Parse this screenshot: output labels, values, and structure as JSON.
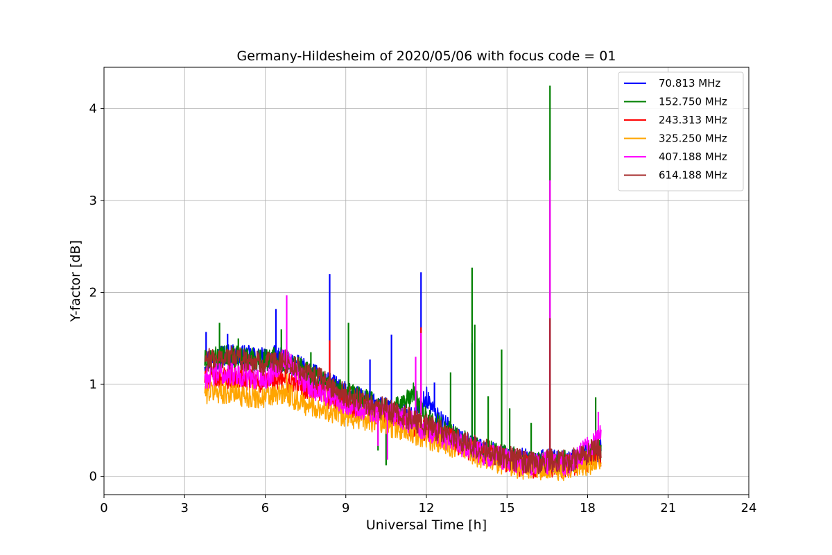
{
  "chart_data": {
    "type": "line",
    "title": "Germany-Hildesheim of 2020/05/06 with focus code = 01",
    "xlabel": "Universal Time [h]",
    "ylabel": "Y-factor [dB]",
    "xlim": [
      0,
      24
    ],
    "ylim": [
      -0.2,
      4.45
    ],
    "xticks": [
      0,
      3,
      6,
      9,
      12,
      15,
      18,
      21,
      24
    ],
    "yticks": [
      0,
      1,
      2,
      3,
      4
    ],
    "grid": true,
    "legend_position": "upper right",
    "series": [
      {
        "name": " 70.813 MHz",
        "color": "#0000ff",
        "x": [
          3.75,
          4.5,
          5.25,
          6.0,
          6.4,
          6.75,
          7.5,
          8.4,
          9.0,
          9.75,
          10.25,
          10.75,
          11.5,
          12.0,
          12.5,
          13.25,
          14.0,
          14.75,
          15.5,
          16.0,
          16.6,
          17.0,
          17.5,
          18.0,
          18.5
        ],
        "values": [
          1.25,
          1.32,
          1.3,
          1.27,
          1.3,
          1.25,
          1.15,
          1.0,
          0.9,
          0.82,
          0.75,
          0.7,
          0.62,
          0.85,
          0.6,
          0.38,
          0.28,
          0.22,
          0.18,
          0.15,
          0.17,
          0.15,
          0.17,
          0.22,
          0.3
        ],
        "spikes": [
          [
            3.8,
            1.57
          ],
          [
            4.6,
            1.55
          ],
          [
            6.4,
            1.82
          ],
          [
            8.4,
            2.2
          ],
          [
            9.9,
            1.27
          ],
          [
            10.7,
            1.54
          ],
          [
            11.8,
            2.22
          ],
          [
            12.3,
            1.02
          ],
          [
            13.7,
            1.45
          ],
          [
            16.6,
            1.6
          ]
        ]
      },
      {
        "name": "152.750 MHz",
        "color": "#008000",
        "x": [
          3.75,
          4.5,
          5.25,
          6.0,
          6.4,
          6.75,
          7.5,
          8.4,
          9.0,
          9.75,
          10.25,
          10.75,
          11.5,
          12.0,
          12.5,
          13.25,
          14.0,
          14.75,
          15.5,
          16.0,
          16.6,
          17.0,
          17.5,
          18.0,
          18.5
        ],
        "values": [
          1.25,
          1.3,
          1.28,
          1.27,
          1.3,
          1.25,
          1.15,
          1.0,
          0.9,
          0.82,
          0.75,
          0.7,
          0.9,
          0.62,
          0.55,
          0.4,
          0.3,
          0.22,
          0.18,
          0.15,
          0.17,
          0.15,
          0.17,
          0.22,
          0.28
        ],
        "spikes": [
          [
            4.3,
            1.67
          ],
          [
            5.0,
            1.5
          ],
          [
            6.6,
            1.6
          ],
          [
            7.7,
            1.35
          ],
          [
            9.1,
            1.67
          ],
          [
            10.2,
            0.28
          ],
          [
            10.5,
            0.12
          ],
          [
            12.9,
            1.13
          ],
          [
            13.7,
            2.27
          ],
          [
            13.8,
            1.65
          ],
          [
            14.3,
            0.87
          ],
          [
            14.8,
            1.38
          ],
          [
            15.1,
            0.74
          ],
          [
            15.9,
            0.58
          ],
          [
            16.6,
            4.25
          ],
          [
            18.3,
            0.86
          ]
        ]
      },
      {
        "name": "243.313 MHz",
        "color": "#ff0000",
        "x": [
          3.75,
          4.5,
          5.25,
          6.0,
          6.75,
          7.5,
          8.4,
          9.0,
          9.75,
          10.5,
          11.5,
          12.0,
          12.5,
          13.25,
          14.0,
          14.75,
          15.5,
          16.0,
          16.6,
          17.0,
          17.5,
          18.0,
          18.5
        ],
        "values": [
          1.05,
          1.08,
          1.05,
          1.02,
          1.05,
          0.95,
          0.85,
          0.78,
          0.72,
          0.65,
          0.55,
          0.5,
          0.45,
          0.35,
          0.25,
          0.18,
          0.12,
          0.1,
          0.12,
          0.1,
          0.12,
          0.17,
          0.22
        ],
        "spikes": [
          [
            8.4,
            1.48
          ],
          [
            11.8,
            1.62
          ],
          [
            16.6,
            1.7
          ]
        ]
      },
      {
        "name": "325.250 MHz",
        "color": "#ffa500",
        "x": [
          3.75,
          4.5,
          5.25,
          6.0,
          6.75,
          7.5,
          8.4,
          9.0,
          9.75,
          10.5,
          11.5,
          12.0,
          12.5,
          13.25,
          14.0,
          14.75,
          15.5,
          16.0,
          16.6,
          17.0,
          17.5,
          18.0,
          18.5
        ],
        "values": [
          0.92,
          0.92,
          0.88,
          0.85,
          0.9,
          0.78,
          0.72,
          0.66,
          0.62,
          0.56,
          0.48,
          0.42,
          0.38,
          0.3,
          0.22,
          0.15,
          0.1,
          0.08,
          0.1,
          0.08,
          0.1,
          0.14,
          0.18
        ],
        "spikes": [
          [
            6.8,
            1.15
          ]
        ]
      },
      {
        "name": "407.188 MHz",
        "color": "#ff00ff",
        "x": [
          3.75,
          4.5,
          5.25,
          6.0,
          6.75,
          7.5,
          8.4,
          9.0,
          9.75,
          10.5,
          11.5,
          12.0,
          12.5,
          13.25,
          14.0,
          14.75,
          15.5,
          16.0,
          16.6,
          17.0,
          17.5,
          18.0,
          18.5
        ],
        "values": [
          1.08,
          1.12,
          1.1,
          1.05,
          1.3,
          1.0,
          0.88,
          0.8,
          0.74,
          0.68,
          0.58,
          0.5,
          0.45,
          0.35,
          0.26,
          0.2,
          0.15,
          0.13,
          0.15,
          0.13,
          0.18,
          0.3,
          0.45
        ],
        "spikes": [
          [
            6.8,
            1.97
          ],
          [
            10.2,
            0.33
          ],
          [
            10.55,
            0.18
          ],
          [
            11.6,
            1.3
          ],
          [
            11.8,
            1.56
          ],
          [
            16.6,
            3.22
          ],
          [
            18.4,
            0.7
          ]
        ]
      },
      {
        "name": "614.188 MHz",
        "color": "#a52a2a",
        "x": [
          3.75,
          4.5,
          5.25,
          6.0,
          6.75,
          7.5,
          8.4,
          9.0,
          9.75,
          10.5,
          11.5,
          12.0,
          12.5,
          13.25,
          14.0,
          14.75,
          15.5,
          16.0,
          16.6,
          17.0,
          17.5,
          18.0,
          18.5
        ],
        "values": [
          1.25,
          1.3,
          1.27,
          1.22,
          1.25,
          1.12,
          1.0,
          0.88,
          0.8,
          0.72,
          0.62,
          0.55,
          0.5,
          0.38,
          0.3,
          0.22,
          0.17,
          0.15,
          0.17,
          0.15,
          0.18,
          0.25,
          0.32
        ],
        "spikes": [
          [
            16.6,
            1.72
          ]
        ]
      }
    ]
  }
}
